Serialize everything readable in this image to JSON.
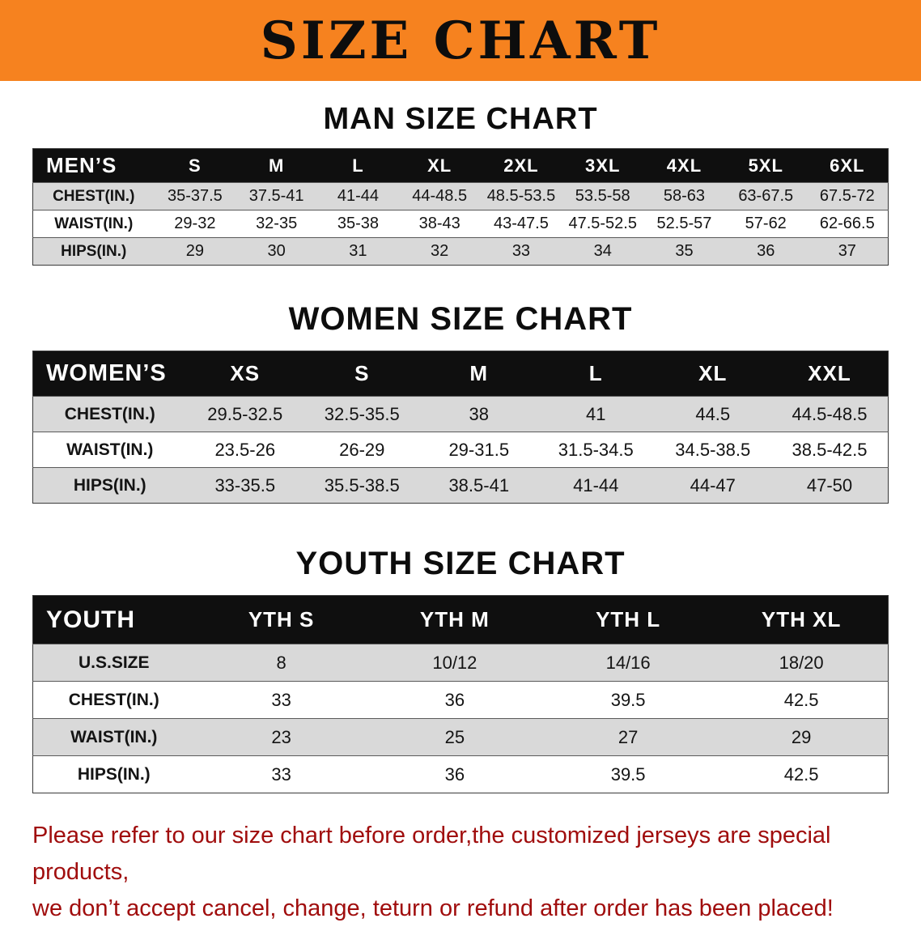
{
  "banner": {
    "title": "SIZE CHART",
    "bg_color": "#f6821f",
    "text_color": "#0d0d0d"
  },
  "sections": [
    {
      "heading": "MAN SIZE CHART",
      "table": {
        "header": [
          "MEN’S",
          "S",
          "M",
          "L",
          "XL",
          "2XL",
          "3XL",
          "4XL",
          "5XL",
          "6XL"
        ],
        "rows": [
          [
            "CHEST(IN.)",
            "35-37.5",
            "37.5-41",
            "41-44",
            "44-48.5",
            "48.5-53.5",
            "53.5-58",
            "58-63",
            "63-67.5",
            "67.5-72"
          ],
          [
            "WAIST(IN.)",
            "29-32",
            "32-35",
            "35-38",
            "38-43",
            "43-47.5",
            "47.5-52.5",
            "52.5-57",
            "57-62",
            "62-66.5"
          ],
          [
            "HIPS(IN.)",
            "29",
            "30",
            "31",
            "32",
            "33",
            "34",
            "35",
            "36",
            "37"
          ]
        ]
      }
    },
    {
      "heading": "WOMEN SIZE CHART",
      "table": {
        "header": [
          "WOMEN’S",
          "XS",
          "S",
          "M",
          "L",
          "XL",
          "XXL"
        ],
        "rows": [
          [
            "CHEST(IN.)",
            "29.5-32.5",
            "32.5-35.5",
            "38",
            "41",
            "44.5",
            "44.5-48.5"
          ],
          [
            "WAIST(IN.)",
            "23.5-26",
            "26-29",
            "29-31.5",
            "31.5-34.5",
            "34.5-38.5",
            "38.5-42.5"
          ],
          [
            "HIPS(IN.)",
            "33-35.5",
            "35.5-38.5",
            "38.5-41",
            "41-44",
            "44-47",
            "47-50"
          ]
        ]
      }
    },
    {
      "heading": "YOUTH SIZE CHART",
      "table": {
        "header": [
          "YOUTH",
          "YTH S",
          "YTH M",
          "YTH L",
          "YTH XL"
        ],
        "rows": [
          [
            "U.S.SIZE",
            "8",
            "10/12",
            "14/16",
            "18/20"
          ],
          [
            "CHEST(IN.)",
            "33",
            "36",
            "39.5",
            "42.5"
          ],
          [
            "WAIST(IN.)",
            "23",
            "25",
            "27",
            "29"
          ],
          [
            "HIPS(IN.)",
            "33",
            "36",
            "39.5",
            "42.5"
          ]
        ]
      }
    }
  ],
  "footer": {
    "line1": "Please refer to our size chart before order,the customized jerseys are special products,",
    "line2": "we don’t accept cancel, change, teturn or refund after order has been placed!",
    "text_color": "#a00d0d"
  }
}
